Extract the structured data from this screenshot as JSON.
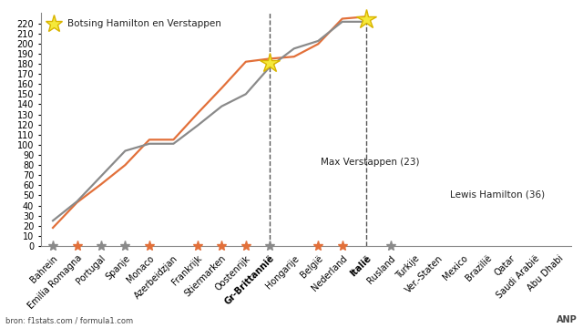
{
  "chart_data": {
    "type": "line",
    "annotation": "Botsing Hamilton en Verstappen",
    "source": "bron: f1stats.com / formula1.com",
    "credit": "ANP",
    "categories": [
      "Bahrein",
      "Emilia Romagna",
      "Portugal",
      "Spanje",
      "Monaco",
      "Azerbeidzjan",
      "Frankrijk",
      "Stiermarken",
      "Oostenrijk",
      "Gr-Brittannië",
      "Hongarije",
      "België",
      "Nederland",
      "Italië",
      "Rusland",
      "Turkije",
      "Ver.-Staten",
      "Mexico",
      "Brazilië",
      "Qatar",
      "Saudi Arabië",
      "Abu Dhabi"
    ],
    "series": [
      {
        "name": "Max Verstappen (23)",
        "color": "#e2703a",
        "line_style": "solid",
        "values": [
          18,
          43,
          61,
          80,
          105,
          105,
          131,
          156,
          182,
          185,
          187,
          199.5,
          224.5,
          226.5,
          null,
          null,
          null,
          null,
          null,
          null,
          null,
          null
        ]
      },
      {
        "name": "Lewis Hamilton (36)",
        "color": "#8a8a8a",
        "line_style": "solid",
        "values": [
          25,
          44,
          69,
          94,
          101,
          101,
          119,
          138,
          150,
          177,
          195,
          202.5,
          221.5,
          221.5,
          null,
          null,
          null,
          null,
          null,
          null,
          null,
          null
        ]
      }
    ],
    "winners": [
      "Lewis Hamilton (36)",
      "Max Verstappen (23)",
      "Lewis Hamilton (36)",
      "Lewis Hamilton (36)",
      "Max Verstappen (23)",
      null,
      "Max Verstappen (23)",
      "Max Verstappen (23)",
      "Max Verstappen (23)",
      "Lewis Hamilton (36)",
      null,
      "Max Verstappen (23)",
      "Max Verstappen (23)",
      null,
      "Lewis Hamilton (36)",
      null,
      null,
      null,
      null,
      null,
      null,
      null
    ],
    "collisions": [
      "Gr-Brittannië",
      "Italië"
    ],
    "ylim": [
      0,
      230
    ],
    "yticks": [
      0,
      10,
      20,
      30,
      40,
      50,
      60,
      70,
      80,
      90,
      100,
      110,
      120,
      130,
      140,
      150,
      160,
      170,
      180,
      190,
      200,
      210,
      220
    ],
    "grid": false,
    "tick_labels": true
  }
}
